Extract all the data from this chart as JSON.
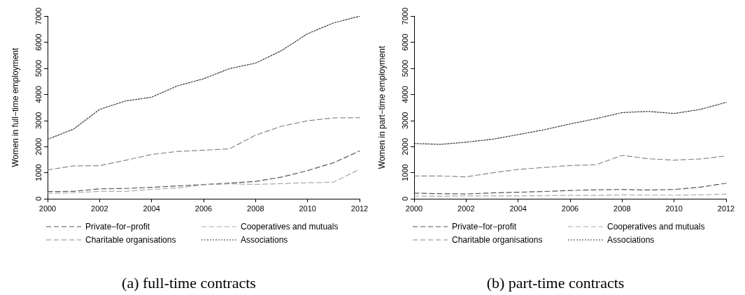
{
  "chart_data": [
    {
      "type": "line",
      "title": "(a) full-time contracts",
      "ylabel": "Women in full−time employment",
      "x": [
        2000,
        2001,
        2002,
        2003,
        2004,
        2005,
        2006,
        2007,
        2008,
        2009,
        2010,
        2011,
        2012
      ],
      "xlim": [
        2000,
        2012
      ],
      "xticks": [
        2000,
        2002,
        2004,
        2006,
        2008,
        2010,
        2012
      ],
      "ylim": [
        0,
        7000
      ],
      "yticks": [
        0,
        1000,
        2000,
        3000,
        4000,
        5000,
        6000,
        7000
      ],
      "grid": false,
      "legend": "bottom",
      "marker": "none",
      "series": [
        {
          "name": "Private−for−profit",
          "color": "#555555",
          "line_style": "dashed",
          "values": [
            275,
            285,
            380,
            395,
            440,
            490,
            545,
            600,
            665,
            830,
            1080,
            1380,
            1830
          ]
        },
        {
          "name": "Cooperatives and mutuals",
          "color": "#aaaaaa",
          "line_style": "dashed",
          "values": [
            210,
            230,
            285,
            285,
            360,
            415,
            535,
            570,
            550,
            580,
            615,
            635,
            1130
          ]
        },
        {
          "name": "Charitable organisations",
          "color": "#888888",
          "line_style": "dashed",
          "values": [
            1105,
            1260,
            1270,
            1475,
            1700,
            1815,
            1860,
            1915,
            2440,
            2780,
            2990,
            3100,
            3110
          ]
        },
        {
          "name": "Associations",
          "color": "#333333",
          "line_style": "dotted",
          "values": [
            2280,
            2670,
            3425,
            3750,
            3895,
            4330,
            4600,
            4990,
            5200,
            5680,
            6330,
            6740,
            7000
          ]
        }
      ]
    },
    {
      "type": "line",
      "title": "(b) part-time contracts",
      "ylabel": "Women in part−time employment",
      "x": [
        2000,
        2001,
        2002,
        2003,
        2004,
        2005,
        2006,
        2007,
        2008,
        2009,
        2010,
        2011,
        2012
      ],
      "xlim": [
        2000,
        2012
      ],
      "xticks": [
        2000,
        2002,
        2004,
        2006,
        2008,
        2010,
        2012
      ],
      "ylim": [
        0,
        7000
      ],
      "yticks": [
        0,
        1000,
        2000,
        3000,
        4000,
        5000,
        6000,
        7000
      ],
      "grid": false,
      "legend": "bottom",
      "marker": "none",
      "series": [
        {
          "name": "Private−for−profit",
          "color": "#555555",
          "line_style": "dashed",
          "values": [
            215,
            195,
            185,
            225,
            250,
            280,
            315,
            345,
            355,
            335,
            355,
            445,
            595
          ]
        },
        {
          "name": "Cooperatives and mutuals",
          "color": "#aaaaaa",
          "line_style": "dashed",
          "values": [
            110,
            95,
            110,
            110,
            110,
            120,
            130,
            130,
            150,
            140,
            140,
            150,
            175
          ]
        },
        {
          "name": "Charitable organisations",
          "color": "#888888",
          "line_style": "dashed",
          "values": [
            875,
            875,
            840,
            995,
            1125,
            1200,
            1275,
            1305,
            1665,
            1535,
            1480,
            1525,
            1640
          ]
        },
        {
          "name": "Associations",
          "color": "#333333",
          "line_style": "dotted",
          "values": [
            2120,
            2085,
            2170,
            2280,
            2460,
            2645,
            2870,
            3070,
            3305,
            3350,
            3270,
            3425,
            3695
          ]
        }
      ]
    }
  ]
}
